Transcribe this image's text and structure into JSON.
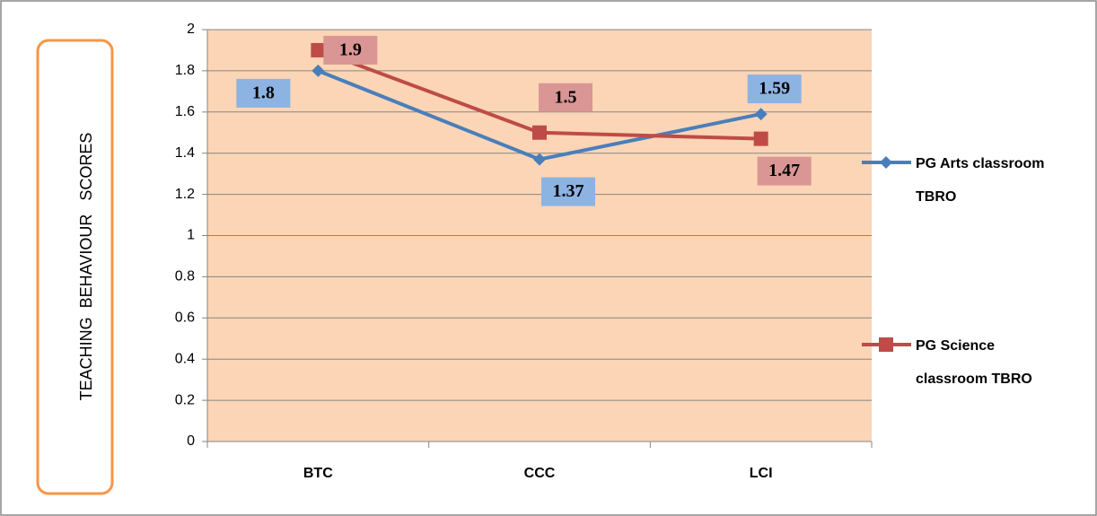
{
  "chart_data": {
    "type": "line",
    "y_label": "TEACHING  BEHAVIOUR   SCORES",
    "categories": [
      "BTC",
      "CCC",
      "LCI"
    ],
    "series": [
      {
        "name": "PG Arts classroom TBRO",
        "color": "#4a7ebb",
        "label_color": "#8db3e2",
        "marker": "diamond",
        "values": [
          1.8,
          1.37,
          1.59
        ]
      },
      {
        "name": "PG Science classroom TBRO",
        "color": "#be4b48",
        "label_color": "#d99694",
        "marker": "square",
        "values": [
          1.9,
          1.5,
          1.47
        ]
      }
    ],
    "ylim": [
      0,
      2
    ],
    "yticks": [
      0,
      0.2,
      0.4,
      0.6,
      0.8,
      1,
      1.2,
      1.4,
      1.6,
      1.8,
      2
    ],
    "grid": true,
    "legend": "right",
    "plot_background": "#fbd5b5"
  }
}
